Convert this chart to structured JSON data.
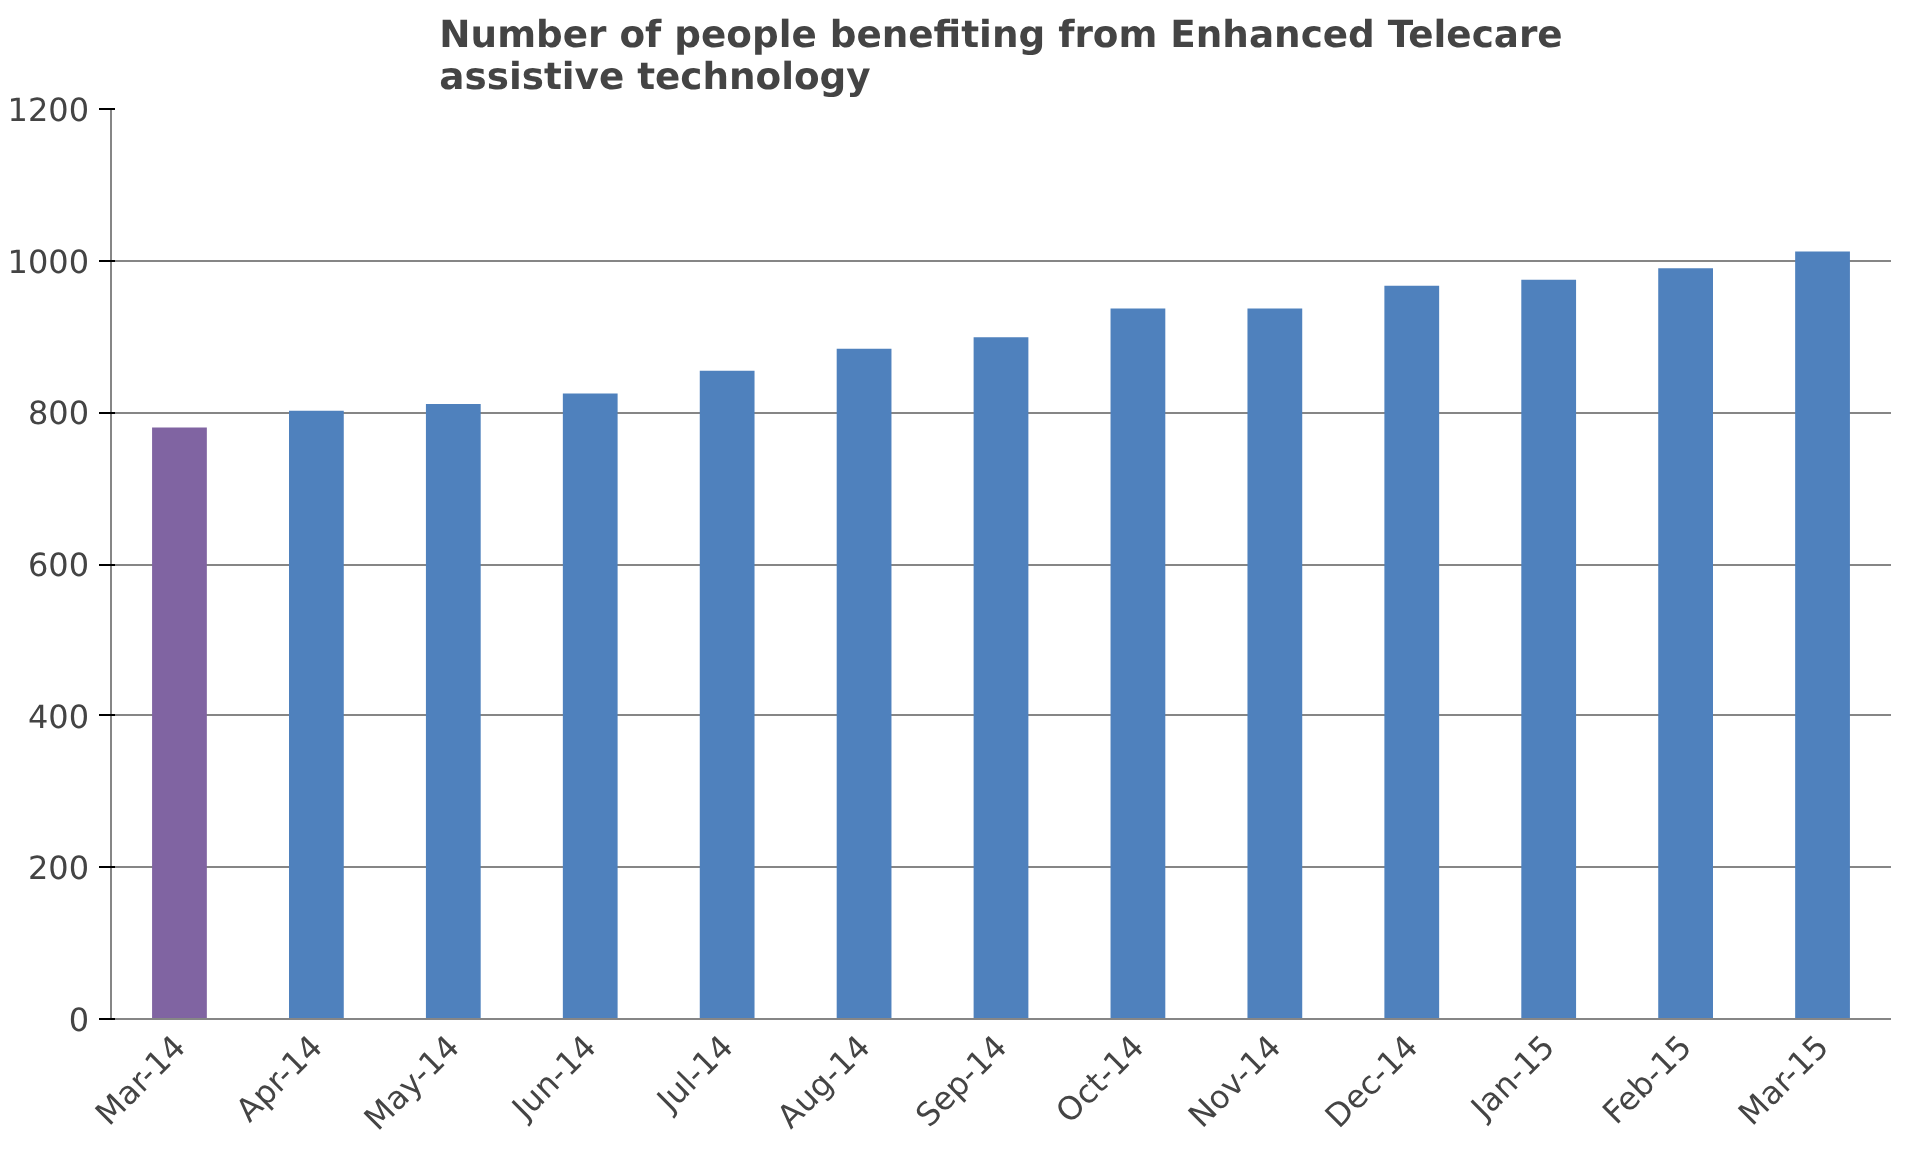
{
  "chart_data": {
    "type": "bar",
    "title": "Number of people benefiting from Enhanced Telecare\nassistive technology",
    "categories": [
      "Mar-14",
      "Apr-14",
      "May-14",
      "Jun-14",
      "Jul-14",
      "Aug-14",
      "Sep-14",
      "Oct-14",
      "Nov-14",
      "Dec-14",
      "Jan-15",
      "Feb-15",
      "Mar-15"
    ],
    "values": [
      780,
      802,
      811,
      825,
      855,
      884,
      899,
      937,
      937,
      967,
      975,
      990,
      1012
    ],
    "colors": [
      "#8064a2",
      "#4f81bd",
      "#4f81bd",
      "#4f81bd",
      "#4f81bd",
      "#4f81bd",
      "#4f81bd",
      "#4f81bd",
      "#4f81bd",
      "#4f81bd",
      "#4f81bd",
      "#4f81bd",
      "#4f81bd"
    ],
    "ylim": [
      0,
      1200
    ],
    "yticks": [
      0,
      200,
      400,
      600,
      800,
      1000,
      1200
    ],
    "grid": "y"
  }
}
